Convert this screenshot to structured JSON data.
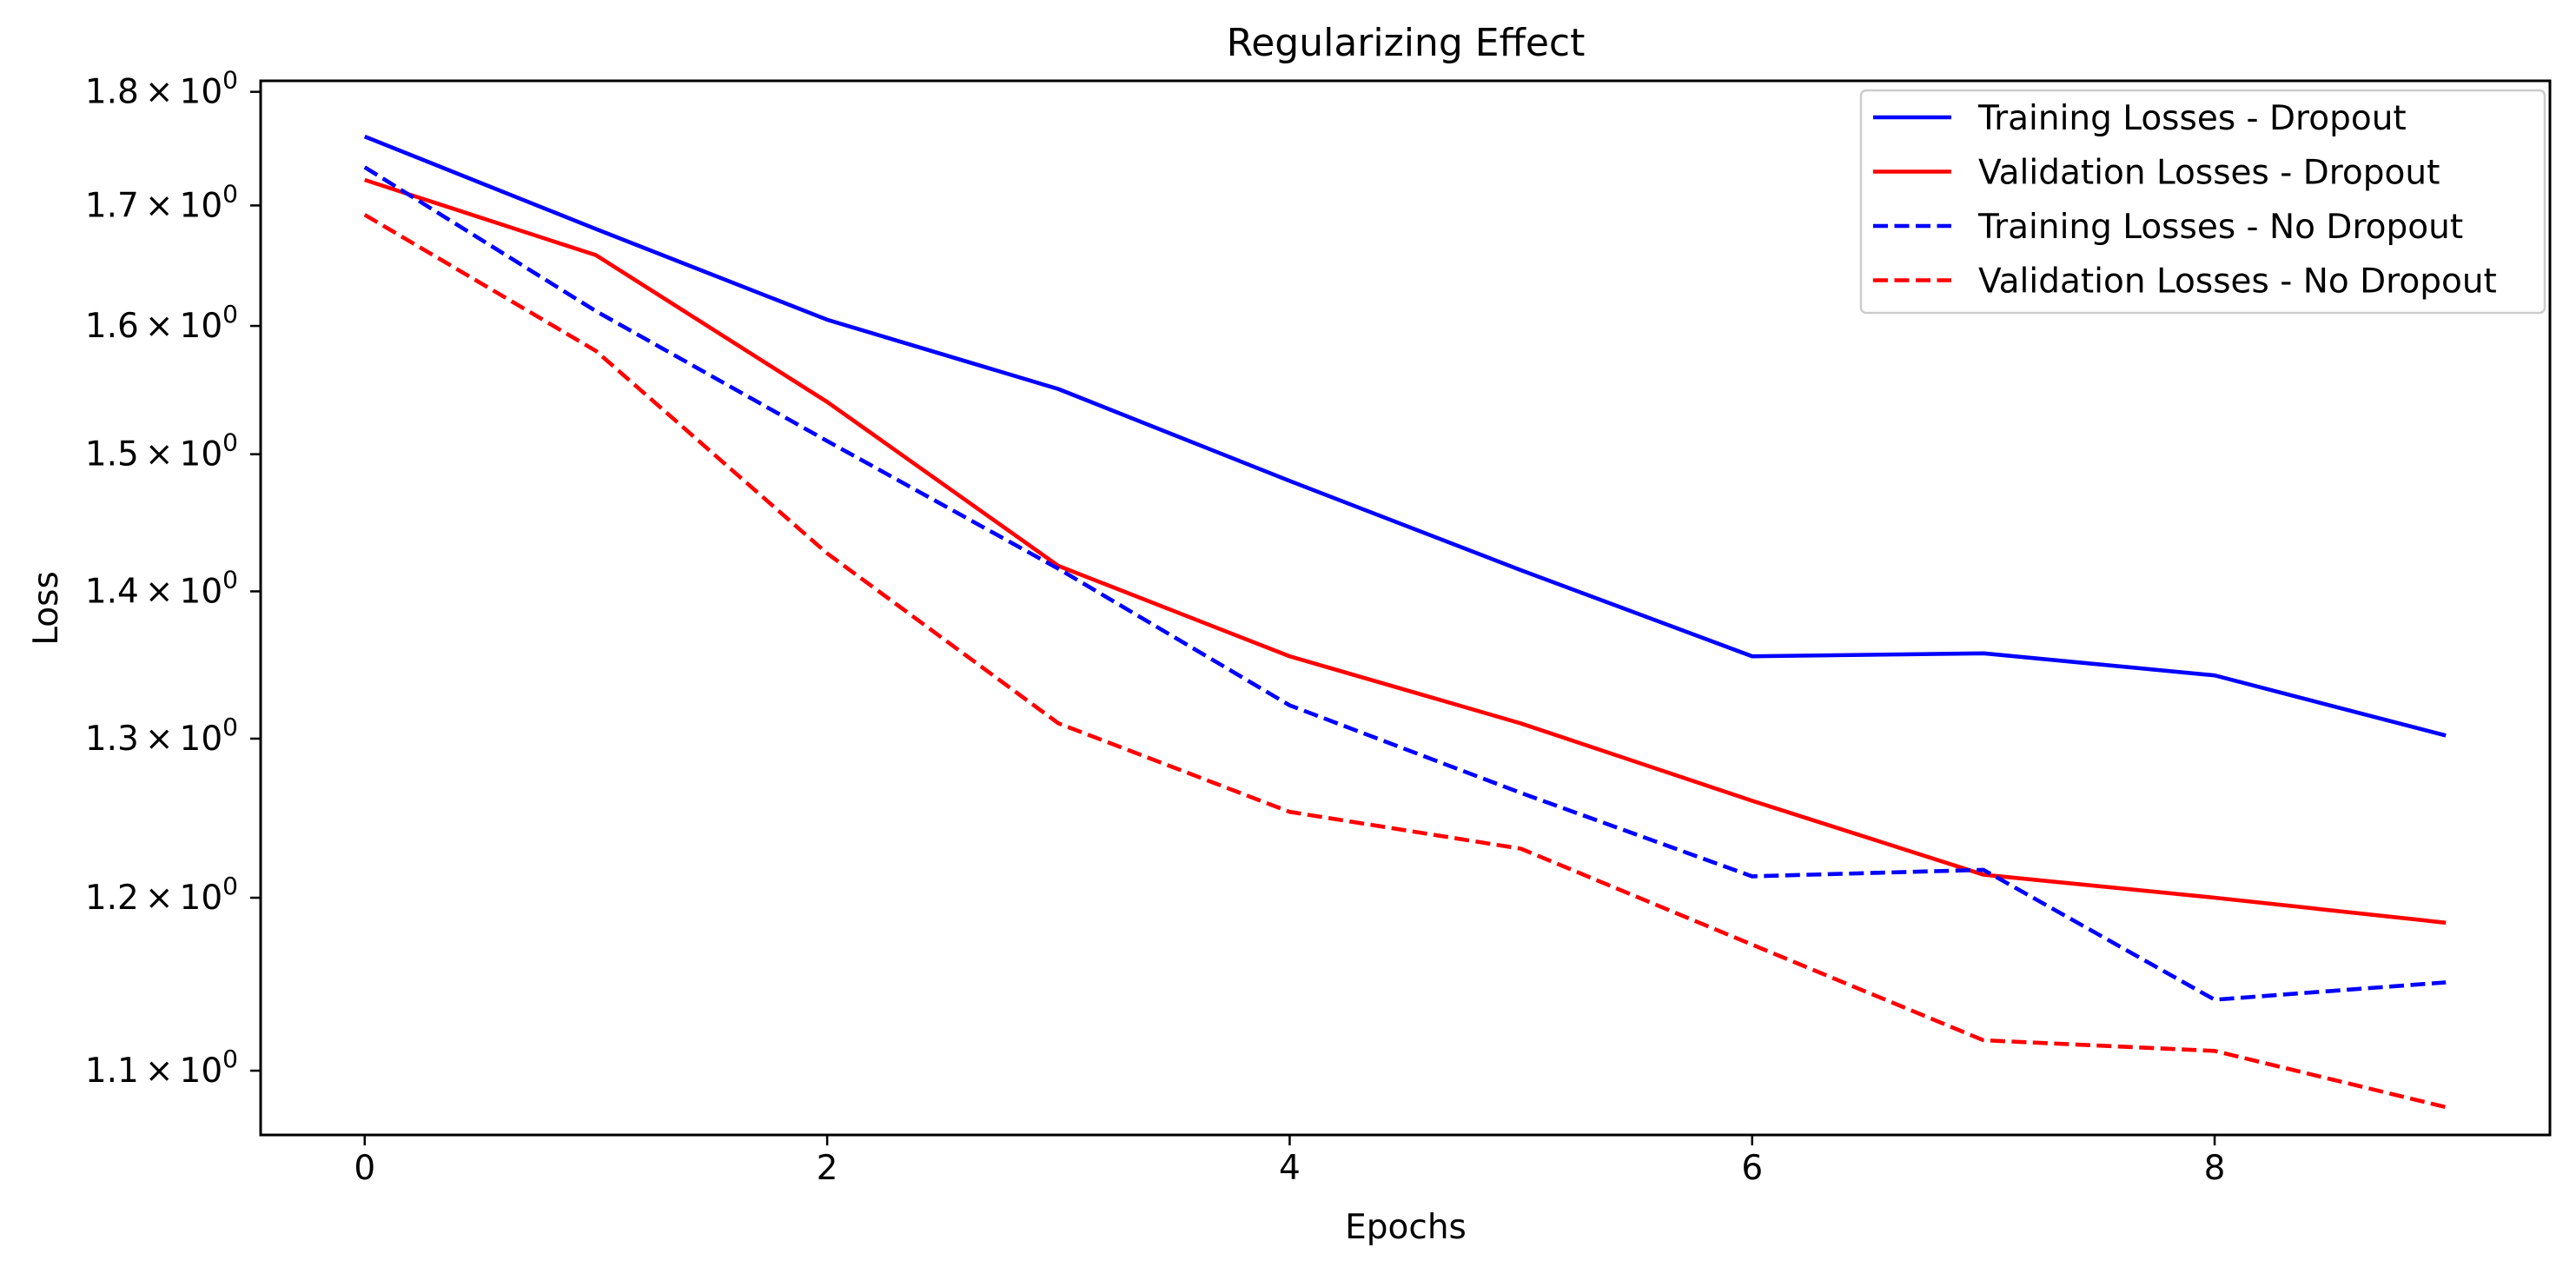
{
  "chart_data": {
    "type": "line",
    "title": "Regularizing Effect",
    "xlabel": "Epochs",
    "ylabel": "Loss",
    "yscale": "log",
    "xlim": [
      -0.45,
      9.45
    ],
    "ylim": [
      1.065,
      1.81
    ],
    "grid": false,
    "legend_position": "top-right",
    "x": [
      0,
      1,
      2,
      3,
      4,
      5,
      6,
      7,
      8,
      9
    ],
    "x_ticks": [
      0,
      2,
      4,
      6,
      8
    ],
    "x_tick_labels": [
      "0",
      "2",
      "4",
      "6",
      "8"
    ],
    "y_ticks": [
      1.1,
      1.2,
      1.3,
      1.4,
      1.5,
      1.6,
      1.7,
      1.8
    ],
    "y_tick_mantissas": [
      "1.1",
      "1.2",
      "1.3",
      "1.4",
      "1.5",
      "1.6",
      "1.7",
      "1.8"
    ],
    "y_tick_times": "×",
    "y_tick_base": "10",
    "y_tick_exponent": "0",
    "series": [
      {
        "name": "Training Losses - Dropout",
        "color": "#0000ff",
        "linestyle": "solid",
        "values": [
          1.76,
          1.68,
          1.605,
          1.55,
          1.48,
          1.415,
          1.355,
          1.357,
          1.342,
          1.302
        ]
      },
      {
        "name": "Validation Losses - Dropout",
        "color": "#ff0000",
        "linestyle": "solid",
        "values": [
          1.722,
          1.658,
          1.54,
          1.418,
          1.355,
          1.31,
          1.26,
          1.214,
          1.2,
          1.185
        ]
      },
      {
        "name": "Training Losses - No Dropout",
        "color": "#0000ff",
        "linestyle": "dashed",
        "values": [
          1.733,
          1.612,
          1.51,
          1.416,
          1.322,
          1.265,
          1.213,
          1.217,
          1.14,
          1.15
        ]
      },
      {
        "name": "Validation Losses - No Dropout",
        "color": "#ff0000",
        "linestyle": "dashed",
        "values": [
          1.692,
          1.58,
          1.427,
          1.31,
          1.253,
          1.23,
          1.172,
          1.117,
          1.111,
          1.08
        ]
      }
    ]
  }
}
